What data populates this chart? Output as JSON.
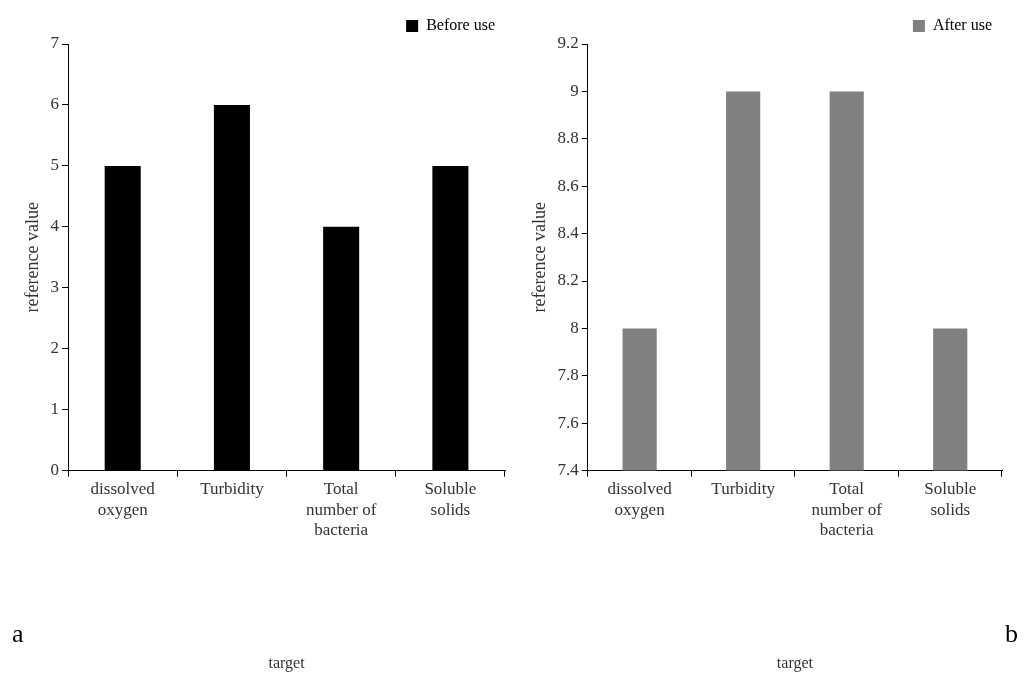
{
  "chart_data": [
    {
      "type": "bar",
      "xlabel": "target",
      "ylabel": "reference value",
      "categories": [
        "dissolved oxygen",
        "Turbidity",
        "Total number of bacteria",
        "Soluble solids"
      ],
      "series": [
        {
          "name": "Before use",
          "color": "#000000",
          "values": [
            5,
            6,
            4,
            5
          ]
        }
      ],
      "ylim": [
        0,
        7
      ],
      "yticks": [
        0,
        1,
        2,
        3,
        4,
        5,
        6,
        7
      ],
      "legend": "top right",
      "annotations": [
        "a"
      ]
    },
    {
      "type": "bar",
      "xlabel": "target",
      "ylabel": "reference value",
      "categories": [
        "dissolved oxygen",
        "Turbidity",
        "Total number of bacteria",
        "Soluble solids"
      ],
      "series": [
        {
          "name": "After use",
          "color": "#808080",
          "values": [
            8,
            9,
            9,
            8
          ]
        }
      ],
      "ylim": [
        7.4,
        9.2
      ],
      "yticks": [
        7.4,
        7.6,
        7.8,
        8,
        8.2,
        8.4,
        8.6,
        8.8,
        9,
        9.2
      ],
      "legend": "top right",
      "annotations": [
        "b"
      ]
    }
  ]
}
